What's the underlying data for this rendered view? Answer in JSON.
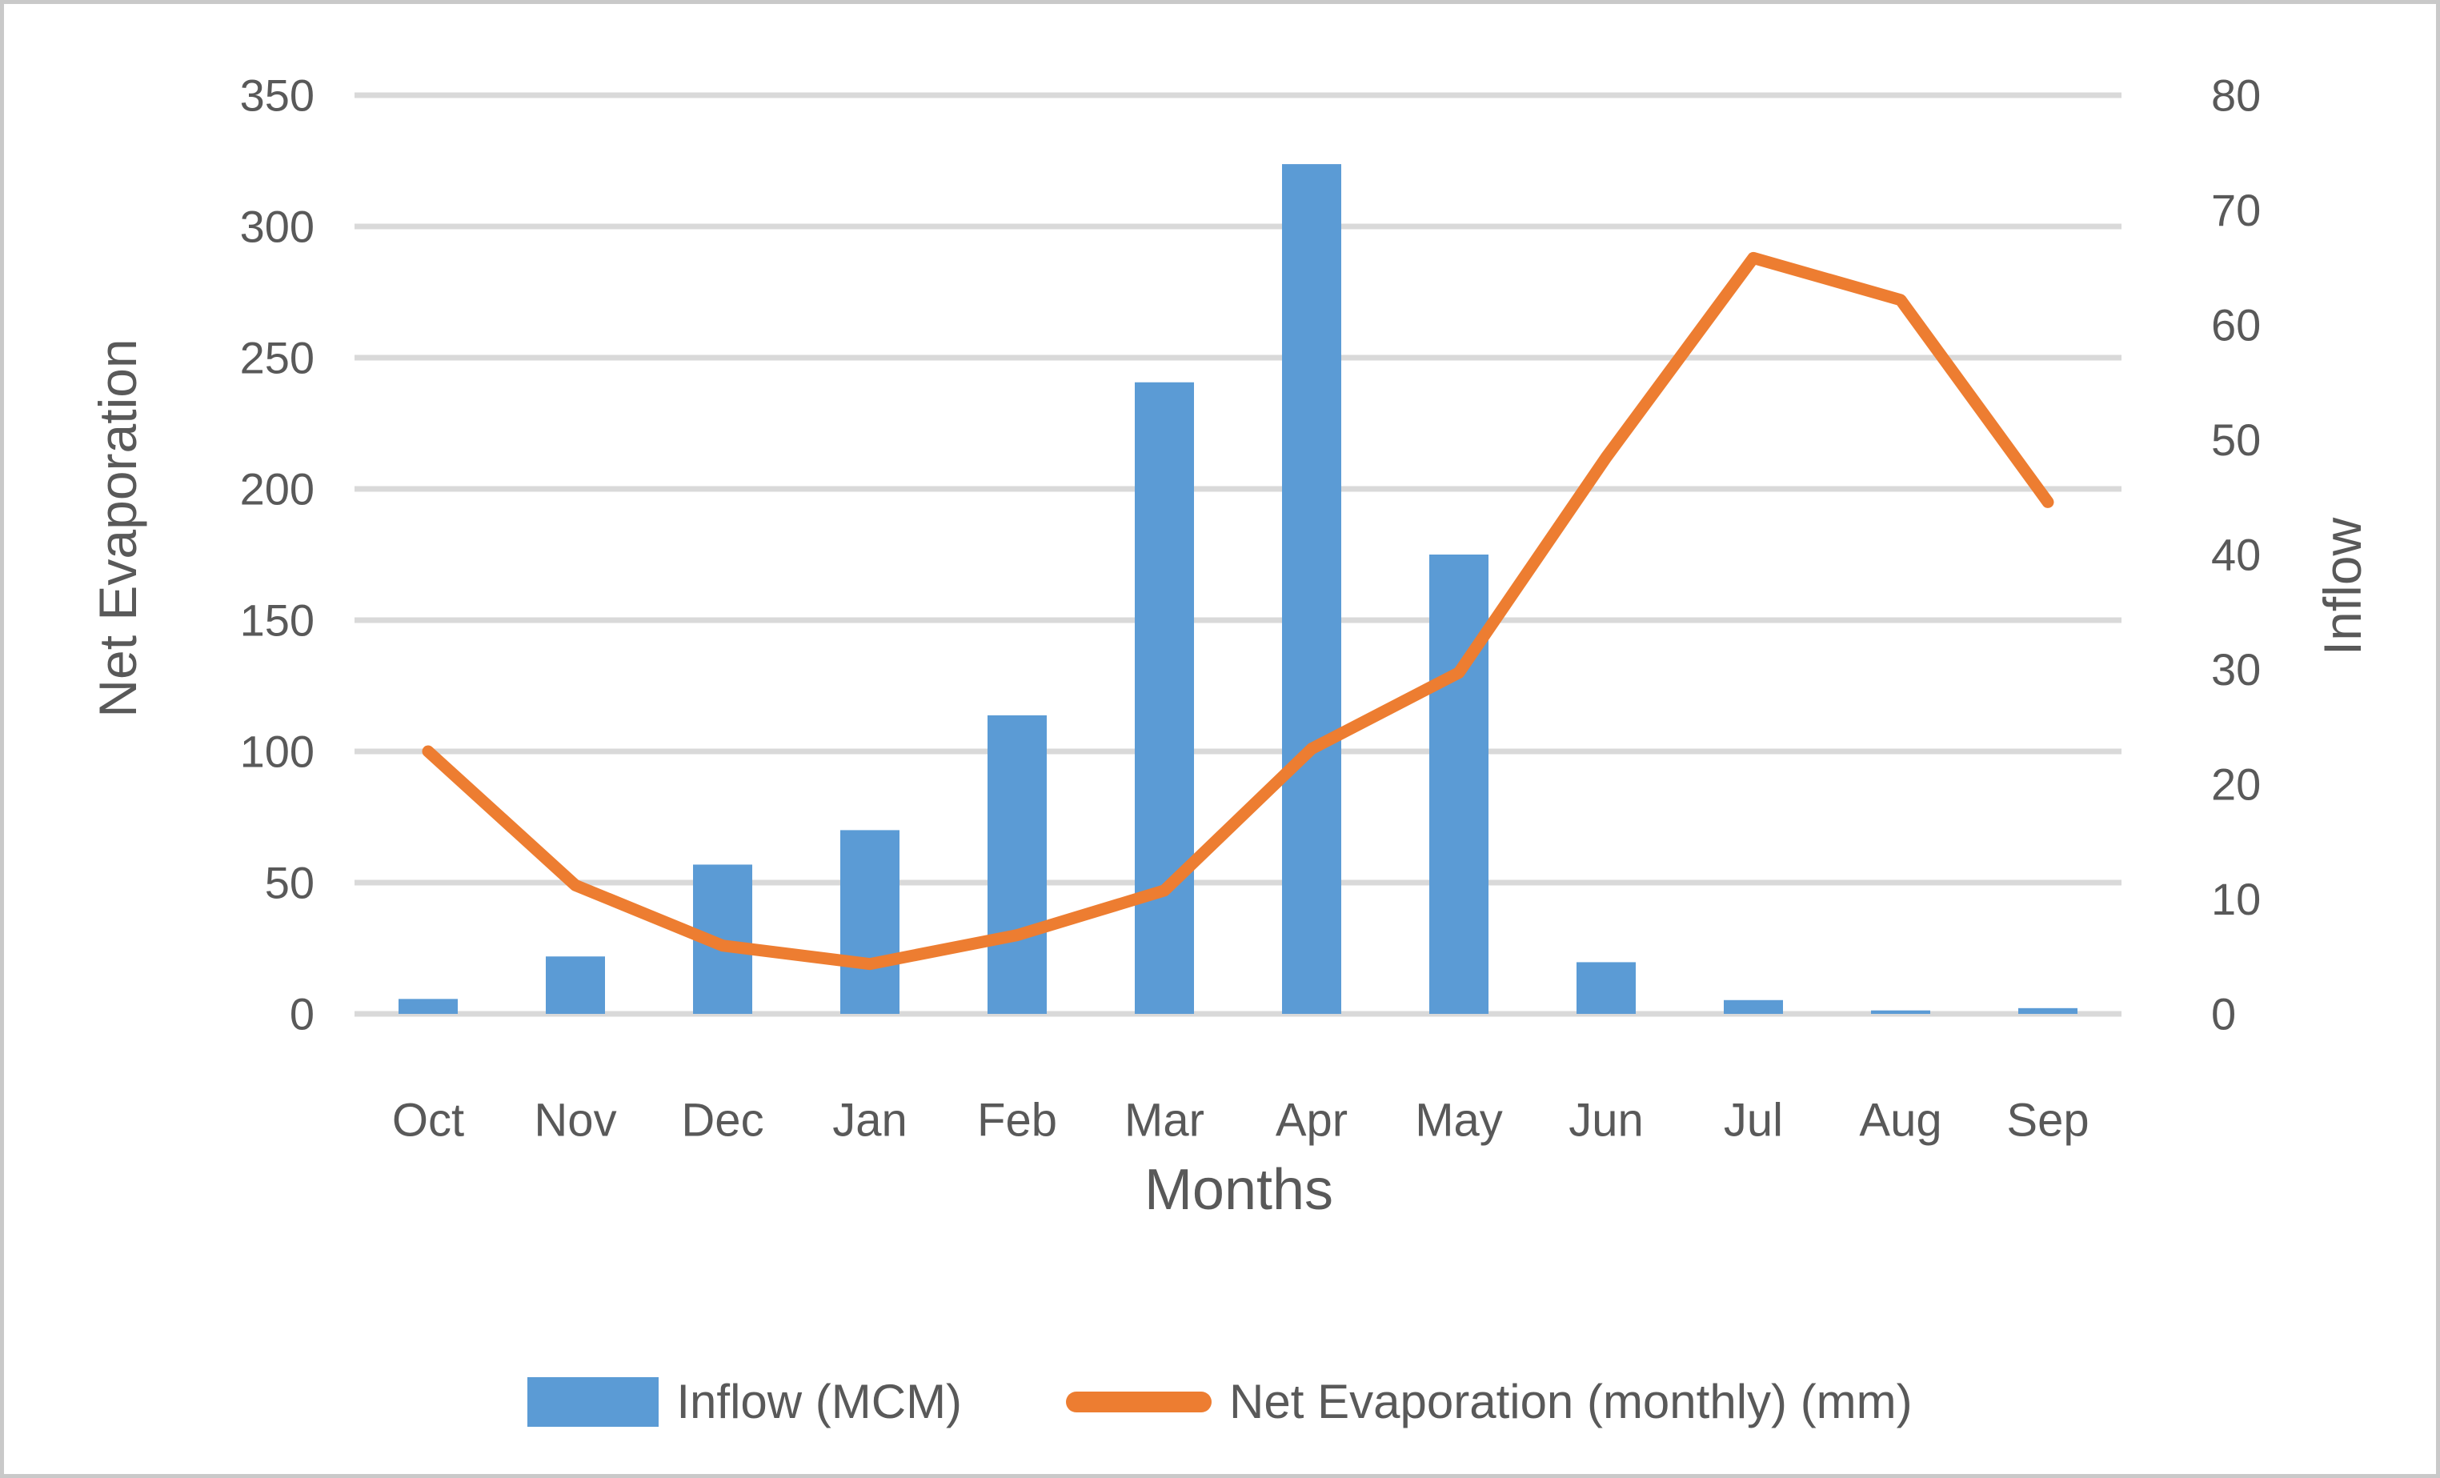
{
  "colors": {
    "bar": "#5B9BD5",
    "line": "#ED7D31",
    "gridline": "#D9D9D9",
    "text": "#595959",
    "frame_border": "#C9C9C9"
  },
  "chart_data": {
    "type": "bar+line combo",
    "categories": [
      "Oct",
      "Nov",
      "Dec",
      "Jan",
      "Feb",
      "Mar",
      "Apr",
      "May",
      "Jun",
      "Jul",
      "Aug",
      "Sep"
    ],
    "series": [
      {
        "name": "Inflow (MCM)",
        "type": "bar",
        "axis": "right",
        "color": "#5B9BD5",
        "values": [
          1.3,
          5,
          13,
          16,
          26,
          55,
          74,
          40,
          4.5,
          1.2,
          0.3,
          0.5
        ]
      },
      {
        "name": "Net Evaporation (monthly) (mm)",
        "type": "line",
        "axis": "left",
        "color": "#ED7D31",
        "values": [
          100,
          49,
          26,
          19,
          30,
          47,
          101,
          130,
          212,
          288,
          272,
          195
        ]
      }
    ],
    "left_axis": {
      "title": "Net Evaporation",
      "min": 0,
      "max": 350,
      "step": 50
    },
    "right_axis": {
      "title": "Inflow",
      "min": 0,
      "max": 80,
      "step": 10
    },
    "xlabel": "Months",
    "grid": "horizontal",
    "legend_position": "bottom"
  }
}
